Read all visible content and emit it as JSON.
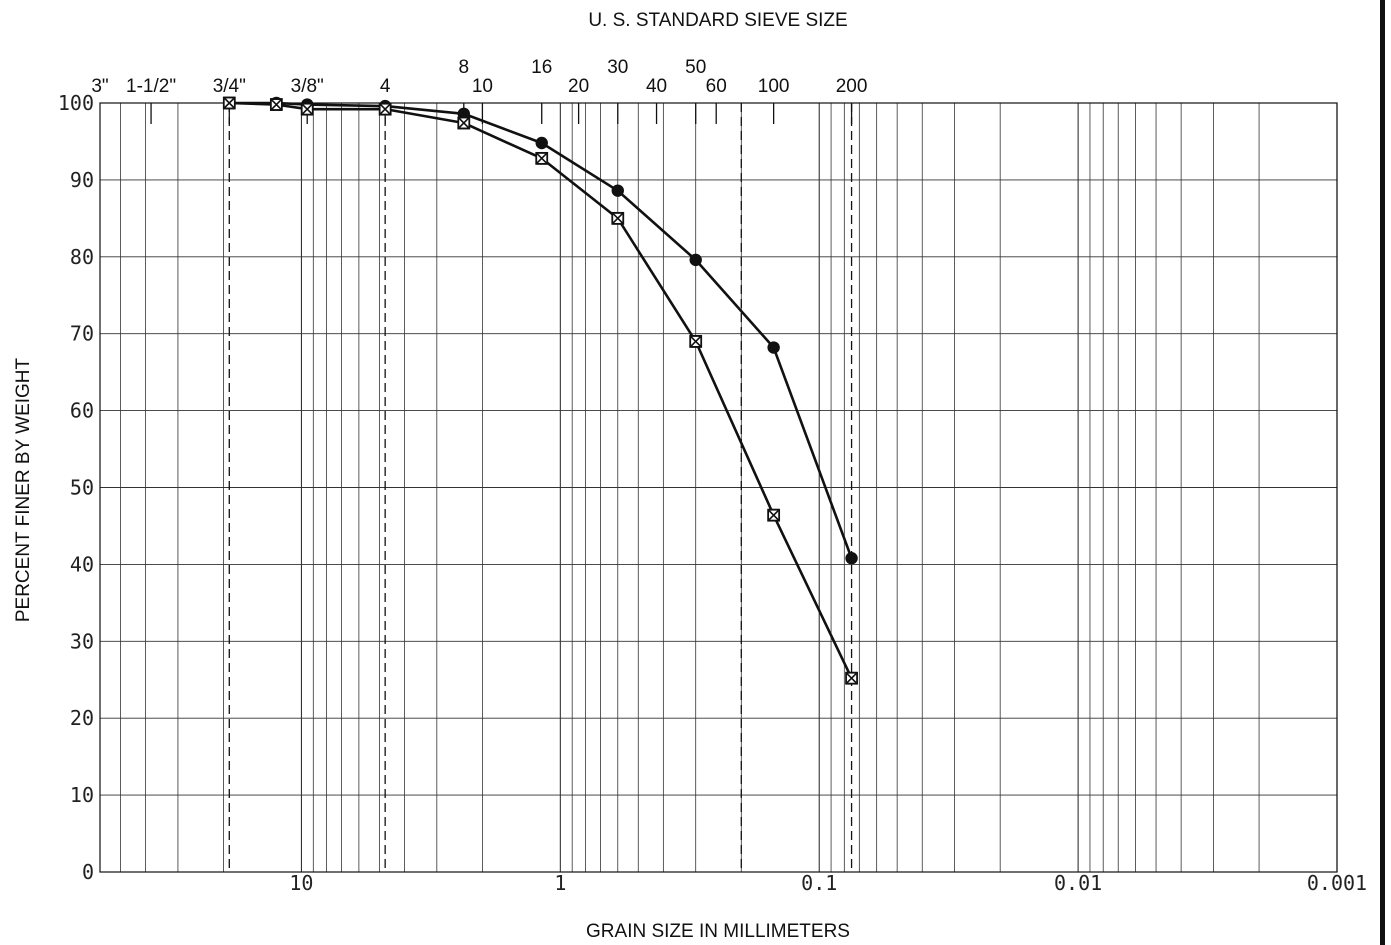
{
  "chart_data": {
    "type": "line",
    "title": "U. S. STANDARD SIEVE SIZE",
    "xlabel": "GRAIN SIZE IN MILLIMETERS",
    "ylabel": "PERCENT FINER BY WEIGHT",
    "x_scale": "log",
    "x_reversed": true,
    "xlim": [
      60,
      0.001
    ],
    "ylim": [
      0,
      100
    ],
    "grid": true,
    "y_ticks": [
      0,
      10,
      20,
      30,
      40,
      50,
      60,
      70,
      80,
      90,
      100
    ],
    "x_ticks": [
      {
        "value": 10,
        "label": "10"
      },
      {
        "value": 1,
        "label": "1"
      },
      {
        "value": 0.1,
        "label": "0.1"
      },
      {
        "value": 0.01,
        "label": "0.01"
      },
      {
        "value": 0.001,
        "label": "0.001"
      }
    ],
    "sieve_labels": [
      {
        "label": "3\"",
        "size": 76.2
      },
      {
        "label": "1-1/2\"",
        "size": 38.1
      },
      {
        "label": "3/4\"",
        "size": 19.0
      },
      {
        "label": "3/8\"",
        "size": 9.5
      },
      {
        "label": "4",
        "size": 4.75
      },
      {
        "label": "8",
        "size": 2.36
      },
      {
        "label": "10",
        "size": 2.0
      },
      {
        "label": "16",
        "size": 1.18
      },
      {
        "label": "20",
        "size": 0.85
      },
      {
        "label": "30",
        "size": 0.6
      },
      {
        "label": "40",
        "size": 0.425
      },
      {
        "label": "50",
        "size": 0.3
      },
      {
        "label": "60",
        "size": 0.25
      },
      {
        "label": "100",
        "size": 0.15
      },
      {
        "label": "200",
        "size": 0.075
      }
    ],
    "boundary_lines": [
      {
        "size": 19.0,
        "style": "dashed"
      },
      {
        "size": 4.75,
        "style": "dashed"
      },
      {
        "size": 0.2,
        "style": "dashed"
      },
      {
        "size": 0.075,
        "style": "dashed"
      }
    ],
    "series": [
      {
        "marker": "circle",
        "x": [
          19.0,
          12.5,
          9.5,
          4.75,
          2.36,
          1.18,
          0.6,
          0.3,
          0.15,
          0.075
        ],
        "y": [
          100,
          100,
          99.8,
          99.6,
          98.6,
          94.8,
          88.6,
          79.6,
          68.2,
          40.8
        ]
      },
      {
        "marker": "square-x",
        "x": [
          19.0,
          12.5,
          9.5,
          4.75,
          2.36,
          1.18,
          0.6,
          0.3,
          0.15,
          0.075
        ],
        "y": [
          100,
          99.8,
          99.2,
          99.2,
          97.4,
          92.8,
          85.0,
          69.0,
          46.4,
          25.2
        ]
      }
    ]
  }
}
